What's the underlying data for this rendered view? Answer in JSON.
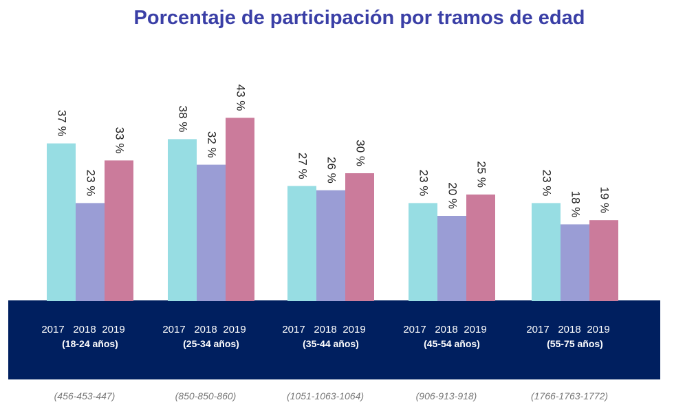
{
  "chart_data": {
    "type": "bar",
    "title": "Porcentaje de participación por tramos de edad",
    "years": [
      "2017",
      "2018",
      "2019"
    ],
    "groups": [
      {
        "label": "(18-24 años)",
        "counts": "(456-453-447)",
        "values": [
          37,
          23,
          33
        ],
        "value_labels": [
          "37 %",
          "23 %",
          "33 %"
        ]
      },
      {
        "label": "(25-34 años)",
        "counts": "(850-850-860)",
        "values": [
          38,
          32,
          43
        ],
        "value_labels": [
          "38 %",
          "32 %",
          "43 %"
        ]
      },
      {
        "label": "(35-44 años)",
        "counts": "(1051-1063-1064)",
        "values": [
          27,
          26,
          30
        ],
        "value_labels": [
          "27 %",
          "26 %",
          "30 %"
        ]
      },
      {
        "label": "(45-54 años)",
        "counts": "(906-913-918)",
        "values": [
          23,
          20,
          25
        ],
        "value_labels": [
          "23 %",
          "20 %",
          "25 %"
        ]
      },
      {
        "label": "(55-75 años)",
        "counts": "(1766-1763-1772)",
        "values": [
          23,
          18,
          19
        ],
        "value_labels": [
          "23 %",
          "18 %",
          "19 %"
        ]
      }
    ],
    "colors": {
      "2017": "#97dde3",
      "2018": "#9a9dd5",
      "2019": "#cb7b9b",
      "band": "#001f5f"
    },
    "grid": false,
    "legend": "none"
  }
}
